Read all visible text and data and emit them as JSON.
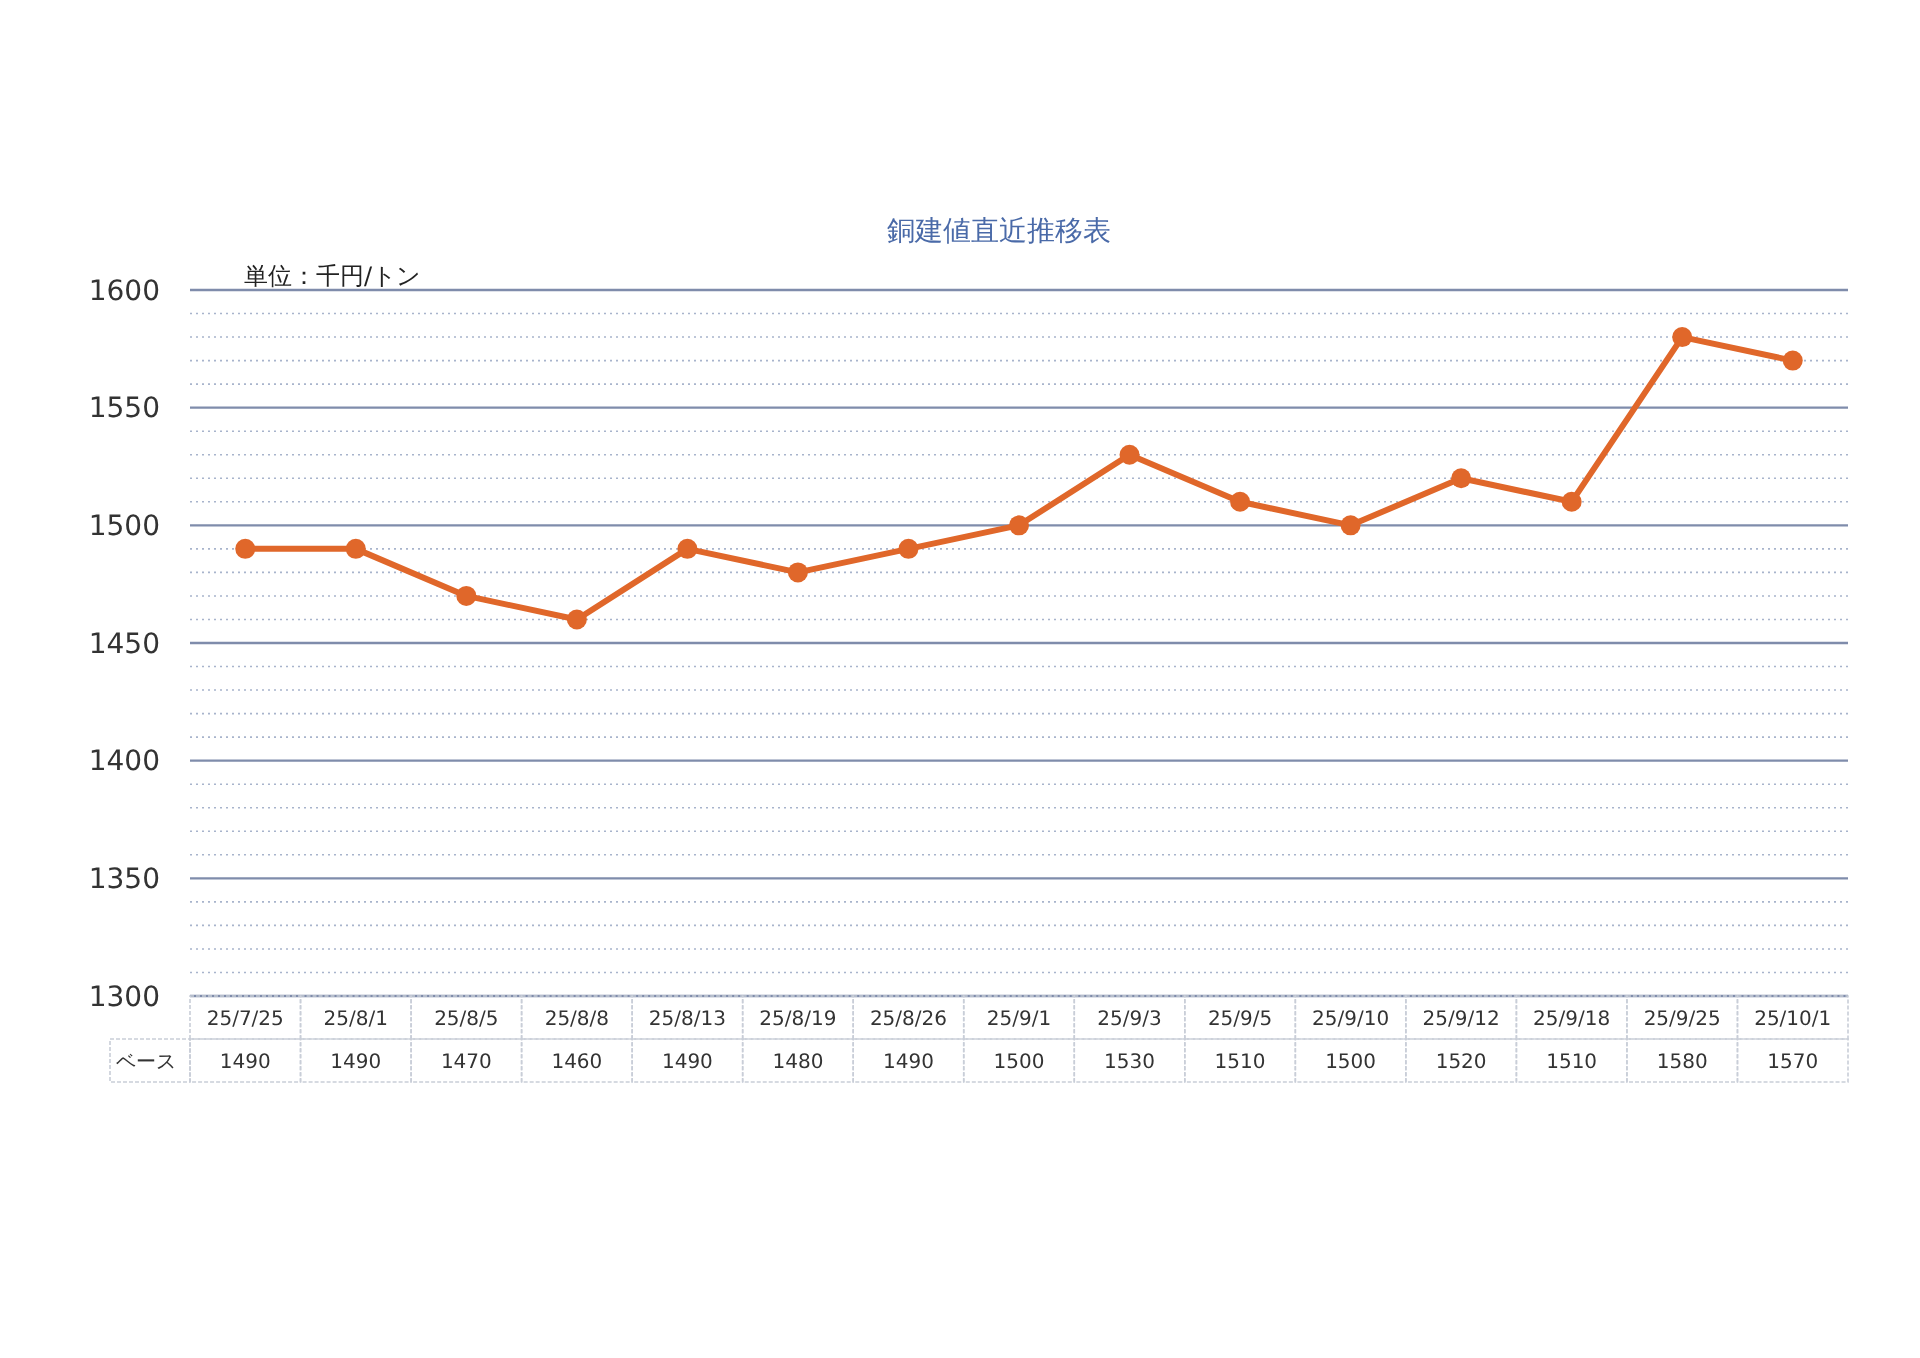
{
  "chart_data": {
    "type": "line",
    "title": "銅建値直近推移表",
    "annotations": [
      "単位：千円/トン"
    ],
    "categories": [
      "25/7/25",
      "25/8/1",
      "25/8/5",
      "25/8/8",
      "25/8/13",
      "25/8/19",
      "25/8/26",
      "25/9/1",
      "25/9/3",
      "25/9/5",
      "25/9/10",
      "25/9/12",
      "25/9/18",
      "25/9/25",
      "25/10/1"
    ],
    "series": [
      {
        "name": "ベース",
        "color": "#e0672a",
        "values": [
          1490,
          1490,
          1470,
          1460,
          1490,
          1480,
          1490,
          1500,
          1530,
          1510,
          1500,
          1520,
          1510,
          1580,
          1570
        ]
      }
    ],
    "ylim": [
      1300,
      1600
    ],
    "yticks": [
      1300,
      1350,
      1400,
      1450,
      1500,
      1550,
      1600
    ],
    "grid": true,
    "marker": "circle",
    "line_style": "solid",
    "data_labels": true
  }
}
